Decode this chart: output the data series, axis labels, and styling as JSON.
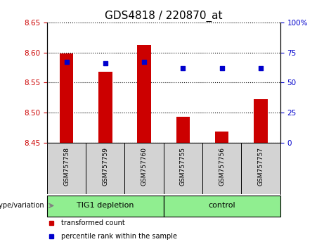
{
  "title": "GDS4818 / 220870_at",
  "samples": [
    "GSM757758",
    "GSM757759",
    "GSM757760",
    "GSM757755",
    "GSM757756",
    "GSM757757"
  ],
  "bar_values": [
    8.598,
    8.568,
    8.612,
    8.493,
    8.468,
    8.522
  ],
  "bar_bottom": 8.45,
  "percentile_values": [
    67,
    66,
    67,
    62,
    62,
    62
  ],
  "ylim_left": [
    8.45,
    8.65
  ],
  "ylim_right": [
    0,
    100
  ],
  "yticks_left": [
    8.45,
    8.5,
    8.55,
    8.6,
    8.65
  ],
  "yticks_right": [
    0,
    25,
    50,
    75,
    100
  ],
  "bar_color": "#cc0000",
  "dot_color": "#0000cc",
  "groups": [
    {
      "label": "TIG1 depletion",
      "indices": [
        0,
        1,
        2
      ],
      "color": "#90ee90"
    },
    {
      "label": "control",
      "indices": [
        3,
        4,
        5
      ],
      "color": "#90ee90"
    }
  ],
  "genotype_label": "genotype/variation",
  "legend_bar_label": "transformed count",
  "legend_dot_label": "percentile rank within the sample",
  "bg_color": "#ffffff",
  "sample_bg_color": "#d3d3d3",
  "title_fontsize": 11,
  "tick_fontsize": 7.5,
  "label_fontsize": 8
}
